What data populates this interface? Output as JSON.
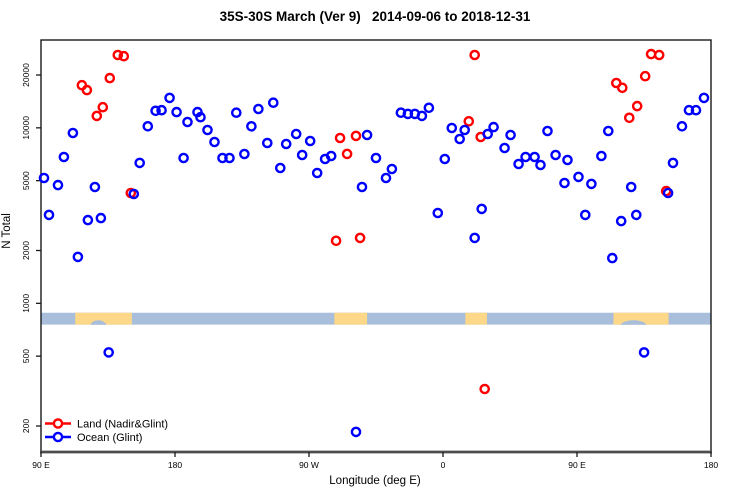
{
  "chart_data": {
    "type": "scatter",
    "title": "35S-30S March (Ver 9)   2014-09-06 to 2018-12-31",
    "xlabel": "Longitude (deg E)",
    "ylabel": "N Total",
    "x_axis": {
      "note": "longitude unwrapped eastward, 90E to 180 (450 deg span)",
      "domain": [
        90,
        540
      ],
      "ticks": [
        {
          "v": 90,
          "label": "90 E"
        },
        {
          "v": 180,
          "label": "180"
        },
        {
          "v": 270,
          "label": "90 W"
        },
        {
          "v": 360,
          "label": "0"
        },
        {
          "v": 450,
          "label": "90 E"
        },
        {
          "v": 540,
          "label": "180"
        }
      ]
    },
    "y_axis": {
      "scale": "log",
      "range": [
        160,
        30000
      ],
      "ticks": [
        {
          "v": 200,
          "label": "200"
        },
        {
          "v": 500,
          "label": "500"
        },
        {
          "v": 1000,
          "label": "1000"
        },
        {
          "v": 2000,
          "label": "2000"
        },
        {
          "v": 5000,
          "label": "5000"
        },
        {
          "v": 10000,
          "label": "10000"
        },
        {
          "v": 20000,
          "label": "20000"
        }
      ]
    },
    "map_strip": {
      "ocean_color": "#a9bedb",
      "land_color": "#fcd888",
      "n_range": [
        755,
        885
      ],
      "land_segments_deg": [
        {
          "from": 113.0,
          "to": 151.0,
          "name": "Australia"
        },
        {
          "from": 287.0,
          "to": 309.0,
          "name": "South America"
        },
        {
          "from": 375.0,
          "to": 389.5,
          "name": "Southern Africa"
        },
        {
          "from": 474.5,
          "to": 511.5,
          "name": "Australia"
        }
      ],
      "coast_notches_deg": [
        {
          "center": 128.5,
          "width": 11
        },
        {
          "center": 488.0,
          "width": 18
        }
      ]
    },
    "series": [
      {
        "name": "Land (Nadir&Glint)",
        "color": "#ff0000",
        "points": [
          [
            117.5,
            17500
          ],
          [
            120.8,
            16400
          ],
          [
            127.5,
            11700
          ],
          [
            131.5,
            13100
          ],
          [
            136.2,
            19200
          ],
          [
            141.6,
            26000
          ],
          [
            145.6,
            25600
          ],
          [
            150.3,
            4250
          ],
          [
            288.2,
            2270
          ],
          [
            290.9,
            8750
          ],
          [
            295.6,
            7100
          ],
          [
            301.6,
            9000
          ],
          [
            304.3,
            2360
          ],
          [
            377.3,
            10900
          ],
          [
            381.3,
            26000
          ],
          [
            385.3,
            8870
          ],
          [
            388.0,
            325
          ],
          [
            476.4,
            18000
          ],
          [
            480.4,
            16900
          ],
          [
            485.1,
            11400
          ],
          [
            490.4,
            13300
          ],
          [
            495.8,
            19700
          ],
          [
            499.8,
            26300
          ],
          [
            505.2,
            26000
          ],
          [
            509.9,
            4360
          ]
        ]
      },
      {
        "name": "Ocean (Glint)",
        "color": "#0000ff",
        "points": [
          [
            92.0,
            5180
          ],
          [
            95.4,
            3190
          ],
          [
            101.4,
            4720
          ],
          [
            105.4,
            6820
          ],
          [
            111.4,
            9340
          ],
          [
            114.8,
            1840
          ],
          [
            121.5,
            2980
          ],
          [
            126.2,
            4600
          ],
          [
            130.2,
            3060
          ],
          [
            135.5,
            525
          ],
          [
            152.3,
            4200
          ],
          [
            156.3,
            6310
          ],
          [
            161.7,
            10200
          ],
          [
            167.0,
            12500
          ],
          [
            171.0,
            12600
          ],
          [
            176.4,
            14800
          ],
          [
            181.1,
            12300
          ],
          [
            185.8,
            6730
          ],
          [
            188.4,
            10800
          ],
          [
            195.1,
            12300
          ],
          [
            197.1,
            11500
          ],
          [
            201.8,
            9720
          ],
          [
            206.5,
            8300
          ],
          [
            211.9,
            6730
          ],
          [
            216.6,
            6730
          ],
          [
            221.2,
            12200
          ],
          [
            226.6,
            7090
          ],
          [
            231.3,
            10200
          ],
          [
            236.0,
            12800
          ],
          [
            242.0,
            8190
          ],
          [
            246.0,
            13900
          ],
          [
            250.7,
            5900
          ],
          [
            254.7,
            8090
          ],
          [
            261.4,
            9220
          ],
          [
            265.4,
            7000
          ],
          [
            270.8,
            8410
          ],
          [
            275.5,
            5530
          ],
          [
            280.8,
            6640
          ],
          [
            284.9,
            6910
          ],
          [
            301.6,
            185
          ],
          [
            305.6,
            4600
          ],
          [
            309.0,
            9100
          ],
          [
            315.0,
            6730
          ],
          [
            321.7,
            5180
          ],
          [
            325.7,
            5830
          ],
          [
            331.7,
            12200
          ],
          [
            336.4,
            12000
          ],
          [
            341.1,
            12000
          ],
          [
            345.8,
            11700
          ],
          [
            350.5,
            13000
          ],
          [
            356.5,
            3270
          ],
          [
            361.2,
            6640
          ],
          [
            365.9,
            9980
          ],
          [
            371.2,
            8640
          ],
          [
            374.6,
            9720
          ],
          [
            381.3,
            2360
          ],
          [
            386.0,
            3450
          ],
          [
            390.0,
            9220
          ],
          [
            394.0,
            10100
          ],
          [
            401.4,
            7670
          ],
          [
            405.4,
            9100
          ],
          [
            410.8,
            6220
          ],
          [
            415.5,
            6820
          ],
          [
            421.5,
            6820
          ],
          [
            425.5,
            6140
          ],
          [
            430.2,
            9590
          ],
          [
            435.6,
            7000
          ],
          [
            441.6,
            4850
          ],
          [
            443.6,
            6560
          ],
          [
            451.0,
            5250
          ],
          [
            455.6,
            3190
          ],
          [
            459.7,
            4790
          ],
          [
            466.4,
            6910
          ],
          [
            471.0,
            9590
          ],
          [
            473.7,
            1810
          ],
          [
            479.7,
            2940
          ],
          [
            486.4,
            4600
          ],
          [
            489.8,
            3190
          ],
          [
            495.1,
            525
          ],
          [
            511.2,
            4250
          ],
          [
            514.5,
            6310
          ],
          [
            520.5,
            10200
          ],
          [
            525.2,
            12600
          ],
          [
            529.9,
            12600
          ],
          [
            535.3,
            14800
          ]
        ]
      }
    ],
    "legend_position": "bottom-left"
  }
}
